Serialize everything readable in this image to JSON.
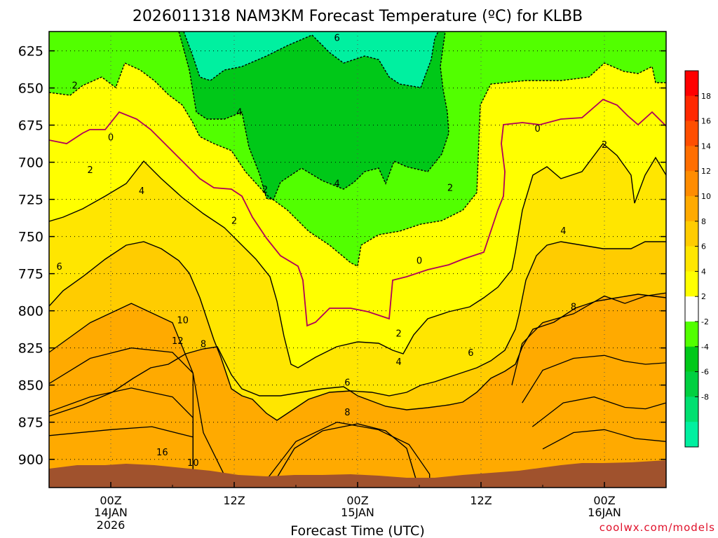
{
  "chart_data": {
    "type": "contour",
    "title": "2026011318 NAM3KM Forecast Temperature (ºC) for KLBB",
    "xlabel": "Forecast Time (UTC)",
    "ylabel": "",
    "credit": "coolwx.com/models",
    "y_ticks": [
      {
        "value": 625,
        "label": "625"
      },
      {
        "value": 650,
        "label": "650"
      },
      {
        "value": 675,
        "label": "675"
      },
      {
        "value": 700,
        "label": "700"
      },
      {
        "value": 725,
        "label": "725"
      },
      {
        "value": 750,
        "label": "750"
      },
      {
        "value": 775,
        "label": "775"
      },
      {
        "value": 800,
        "label": "800"
      },
      {
        "value": 825,
        "label": "825"
      },
      {
        "value": 850,
        "label": "850"
      },
      {
        "value": 875,
        "label": "875"
      },
      {
        "value": 900,
        "label": "900"
      }
    ],
    "ylim": [
      612,
      919
    ],
    "x_ticks": [
      {
        "hour": 6,
        "label": "00Z",
        "sub1": "14JAN",
        "sub2": "2026"
      },
      {
        "hour": 18,
        "label": "12Z",
        "sub1": "",
        "sub2": ""
      },
      {
        "hour": 30,
        "label": "00Z",
        "sub1": "15JAN",
        "sub2": ""
      },
      {
        "hour": 42,
        "label": "12Z",
        "sub1": "",
        "sub2": ""
      },
      {
        "hour": 54,
        "label": "00Z",
        "sub1": "16JAN",
        "sub2": ""
      }
    ],
    "xlim": [
      0,
      60
    ],
    "colorbar": {
      "colors": [
        "#00f0a0",
        "#00e070",
        "#00d040",
        "#00c818",
        "#52ff00",
        "#ffffff",
        "#ffff00",
        "#ffe600",
        "#ffcc00",
        "#ffaa00",
        "#ff8c00",
        "#ff6e00",
        "#ff4e00",
        "#ff2800",
        "#ff0000"
      ],
      "labels": [
        {
          "value": -8,
          "label": "-8"
        },
        {
          "value": -6,
          "label": "-6"
        },
        {
          "value": -4,
          "label": "-4"
        },
        {
          "value": -2,
          "label": "-2"
        },
        {
          "value": 2,
          "label": "2"
        },
        {
          "value": 4,
          "label": "4"
        },
        {
          "value": 6,
          "label": "6"
        },
        {
          "value": 8,
          "label": "8"
        },
        {
          "value": 10,
          "label": "10"
        },
        {
          "value": 12,
          "label": "12"
        },
        {
          "value": 14,
          "label": "14"
        },
        {
          "value": 16,
          "label": "16"
        },
        {
          "value": 18,
          "label": "18"
        }
      ]
    },
    "bands": [
      {
        "level": 16,
        "color": "#ff2800",
        "boundary": [
          [
            0,
            884
          ],
          [
            6,
            880
          ],
          [
            10,
            878
          ],
          [
            14,
            885
          ],
          [
            14,
            913
          ],
          [
            0,
            913
          ]
        ]
      },
      {
        "level": 12,
        "color": "#ff6e00",
        "boundary": [
          [
            0,
            868
          ],
          [
            4,
            858
          ],
          [
            8,
            852
          ],
          [
            12,
            858
          ],
          [
            14,
            872
          ],
          [
            14,
            913
          ],
          [
            0,
            913
          ]
        ]
      },
      {
        "level": 10,
        "color": "#ff8c00",
        "boundary": [
          [
            0,
            849
          ],
          [
            4,
            832
          ],
          [
            8,
            825
          ],
          [
            12,
            828
          ],
          [
            14,
            842
          ],
          [
            14,
            913
          ],
          [
            0,
            913
          ]
        ]
      },
      {
        "level": 8,
        "color": "#ffaa00",
        "boundary": [
          [
            0,
            828
          ],
          [
            4,
            808
          ],
          [
            8,
            795
          ],
          [
            12,
            808
          ],
          [
            14,
            842
          ],
          [
            15,
            882
          ],
          [
            17,
            910
          ],
          [
            14,
            913
          ],
          [
            0,
            913
          ]
        ]
      },
      {
        "level": 16,
        "color": "#ff2800",
        "boundary": [
          [
            48,
            893
          ],
          [
            51,
            882
          ],
          [
            54,
            880
          ],
          [
            57,
            886
          ],
          [
            60,
            888
          ],
          [
            60,
            913
          ],
          [
            48,
            913
          ]
        ]
      },
      {
        "level": 12,
        "color": "#ff6e00",
        "boundary": [
          [
            47,
            878
          ],
          [
            50,
            862
          ],
          [
            53,
            858
          ],
          [
            56,
            865
          ],
          [
            58,
            866
          ],
          [
            60,
            862
          ],
          [
            60,
            913
          ],
          [
            47,
            913
          ]
        ]
      },
      {
        "level": 10,
        "color": "#ff8c00",
        "boundary": [
          [
            46,
            862
          ],
          [
            48,
            840
          ],
          [
            51,
            832
          ],
          [
            54,
            830
          ],
          [
            56,
            834
          ],
          [
            58,
            836
          ],
          [
            60,
            835
          ],
          [
            60,
            913
          ],
          [
            46,
            913
          ]
        ]
      },
      {
        "level": 8,
        "color": "#ffaa00",
        "boundary": [
          [
            45,
            850
          ],
          [
            46,
            822
          ],
          [
            48,
            808
          ],
          [
            51,
            802
          ],
          [
            54,
            790
          ],
          [
            56,
            795
          ],
          [
            58,
            790
          ],
          [
            60,
            788
          ],
          [
            60,
            913
          ],
          [
            45,
            913
          ]
        ]
      },
      {
        "level": 8,
        "color": "#ffaa00",
        "boundary": [
          [
            21,
            915
          ],
          [
            24,
            888
          ],
          [
            28,
            875
          ],
          [
            32,
            880
          ],
          [
            35,
            890
          ],
          [
            37,
            910
          ],
          [
            37,
            913
          ],
          [
            21,
            913
          ]
        ]
      }
    ],
    "contour_labels": [
      {
        "x": 2.5,
        "y": 648,
        "text": "2"
      },
      {
        "x": 6,
        "y": 683,
        "text": "0"
      },
      {
        "x": 4,
        "y": 705,
        "text": "2"
      },
      {
        "x": 9,
        "y": 719,
        "text": "4"
      },
      {
        "x": 1,
        "y": 770,
        "text": "6"
      },
      {
        "x": 13,
        "y": 806,
        "text": "10"
      },
      {
        "x": 12.5,
        "y": 820,
        "text": "12"
      },
      {
        "x": 15,
        "y": 822,
        "text": "8"
      },
      {
        "x": 11,
        "y": 895,
        "text": "16"
      },
      {
        "x": 14,
        "y": 902,
        "text": "10"
      },
      {
        "x": 18,
        "y": 739,
        "text": "2"
      },
      {
        "x": 18.5,
        "y": 666,
        "text": "4"
      },
      {
        "x": 21,
        "y": 718,
        "text": "2"
      },
      {
        "x": 28,
        "y": 714,
        "text": "4"
      },
      {
        "x": 28,
        "y": 616,
        "text": "6"
      },
      {
        "x": 39,
        "y": 717,
        "text": "2"
      },
      {
        "x": 36,
        "y": 766,
        "text": "0"
      },
      {
        "x": 34,
        "y": 815,
        "text": "2"
      },
      {
        "x": 34,
        "y": 834,
        "text": "4"
      },
      {
        "x": 29,
        "y": 848,
        "text": "6"
      },
      {
        "x": 29,
        "y": 868,
        "text": "8"
      },
      {
        "x": 41,
        "y": 828,
        "text": "6"
      },
      {
        "x": 47.5,
        "y": 677,
        "text": "0"
      },
      {
        "x": 54,
        "y": 688,
        "text": "2"
      },
      {
        "x": 50,
        "y": 746,
        "text": "4"
      },
      {
        "x": 51,
        "y": 797,
        "text": "8"
      }
    ]
  }
}
